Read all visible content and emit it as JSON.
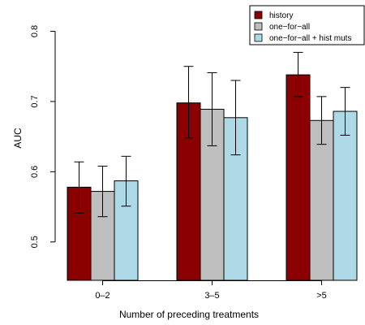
{
  "chart_data": {
    "type": "bar",
    "xlabel": "Number of preceding treatments",
    "ylabel": "AUC",
    "yticks": [
      0.5,
      0.6,
      0.7,
      0.8
    ],
    "ylim": [
      0.45,
      0.83
    ],
    "categories": [
      "0–2",
      "3–5",
      ">5"
    ],
    "legend_position": "top-right",
    "error_bars": true,
    "series": [
      {
        "name": "history",
        "color": "#8b0000",
        "values": [
          0.578,
          0.698,
          0.738
        ],
        "err_low": [
          0.541,
          0.648,
          0.707
        ],
        "err_high": [
          0.614,
          0.75,
          0.77
        ]
      },
      {
        "name": "one−for−all",
        "color": "#bebebe",
        "values": [
          0.572,
          0.689,
          0.673
        ],
        "err_low": [
          0.536,
          0.637,
          0.639
        ],
        "err_high": [
          0.608,
          0.741,
          0.707
        ]
      },
      {
        "name": "one−for−all + hist muts",
        "color": "#add8e6",
        "values": [
          0.587,
          0.677,
          0.686
        ],
        "err_low": [
          0.551,
          0.624,
          0.652
        ],
        "err_high": [
          0.622,
          0.73,
          0.72
        ]
      }
    ]
  }
}
